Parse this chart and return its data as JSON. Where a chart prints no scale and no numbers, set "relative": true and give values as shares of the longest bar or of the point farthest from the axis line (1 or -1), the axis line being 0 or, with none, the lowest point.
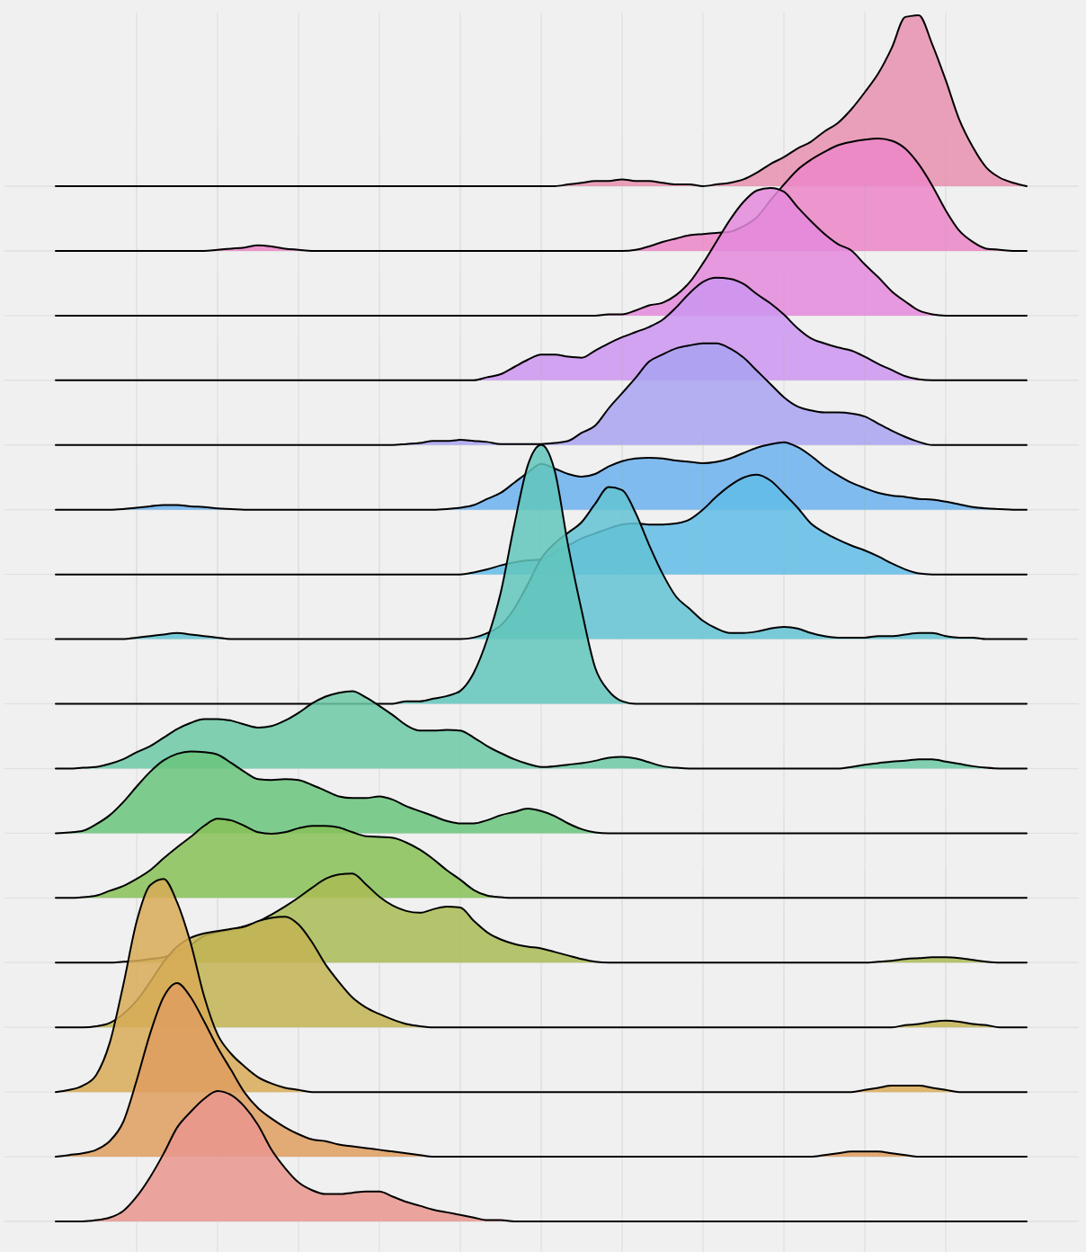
{
  "chart_data": [
    {
      "type": "area",
      "relative": true,
      "grid": true,
      "color": "#e891b0",
      "categories": [
        null,
        null,
        null,
        null,
        null,
        null,
        null,
        null,
        null,
        null,
        null,
        null,
        null,
        null,
        null,
        null,
        null,
        null,
        null,
        null,
        null,
        null,
        null,
        null,
        null,
        null,
        null,
        null,
        null,
        null,
        null,
        null,
        null,
        null,
        null,
        null,
        null,
        null,
        null,
        null,
        null,
        null,
        null,
        null,
        null,
        null,
        null,
        null,
        null,
        null,
        null,
        null,
        null,
        null,
        null,
        null,
        null,
        null,
        null,
        null,
        null,
        null,
        null,
        null,
        null,
        null,
        null,
        null,
        null,
        null,
        null,
        null,
        null
      ],
      "values": [
        0,
        0,
        0,
        0,
        0,
        0,
        0,
        0,
        0,
        0,
        0,
        0,
        0,
        0,
        0,
        0,
        0,
        0,
        0,
        0,
        0,
        0,
        0,
        0,
        0,
        0,
        0,
        0,
        0,
        0,
        0,
        0,
        0,
        0,
        0,
        0,
        0,
        0,
        0.01,
        0.02,
        0.03,
        0.03,
        0.04,
        0.03,
        0.03,
        0.02,
        0.01,
        0.01,
        0,
        0.01,
        0.02,
        0.04,
        0.08,
        0.13,
        0.17,
        0.22,
        0.26,
        0.32,
        0.37,
        0.45,
        0.55,
        0.66,
        0.81,
        0.99,
        1,
        0.83,
        0.62,
        0.39,
        0.23,
        0.11,
        0.05,
        0.02,
        0
      ]
    },
    {
      "type": "area",
      "relative": true,
      "grid": true,
      "color": "#eb86c7",
      "categories": [
        null,
        null,
        null,
        null,
        null,
        null,
        null,
        null,
        null,
        null,
        null,
        null,
        null,
        null,
        null,
        null,
        null,
        null,
        null,
        null,
        null,
        null,
        null,
        null,
        null,
        null,
        null,
        null,
        null,
        null,
        null,
        null,
        null,
        null,
        null,
        null,
        null,
        null,
        null,
        null,
        null,
        null,
        null,
        null,
        null,
        null,
        null,
        null,
        null,
        null,
        null,
        null,
        null,
        null,
        null,
        null,
        null,
        null,
        null,
        null,
        null,
        null,
        null,
        null,
        null,
        null,
        null,
        null,
        null,
        null,
        null,
        null,
        null
      ],
      "values": [
        0,
        0,
        0,
        0,
        0,
        0,
        0,
        0,
        0,
        0,
        0,
        0,
        0.01,
        0.02,
        0.03,
        0.05,
        0.04,
        0.02,
        0.01,
        0,
        0,
        0,
        0,
        0,
        0,
        0,
        0,
        0,
        0,
        0,
        0,
        0,
        0,
        0,
        0,
        0,
        0,
        0,
        0,
        0,
        0,
        0,
        0,
        0.01,
        0.04,
        0.08,
        0.11,
        0.14,
        0.15,
        0.16,
        0.17,
        0.22,
        0.3,
        0.45,
        0.59,
        0.72,
        0.81,
        0.88,
        0.94,
        0.97,
        0.99,
        1,
        0.98,
        0.91,
        0.77,
        0.58,
        0.36,
        0.18,
        0.08,
        0.02,
        0.01,
        0,
        0
      ]
    },
    {
      "type": "area",
      "relative": true,
      "grid": true,
      "color": "#e48adc",
      "categories": [
        null,
        null,
        null,
        null,
        null,
        null,
        null,
        null,
        null,
        null,
        null,
        null,
        null,
        null,
        null,
        null,
        null,
        null,
        null,
        null,
        null,
        null,
        null,
        null,
        null,
        null,
        null,
        null,
        null,
        null,
        null,
        null,
        null,
        null,
        null,
        null,
        null,
        null,
        null,
        null,
        null,
        null,
        null,
        null,
        null,
        null,
        null,
        null,
        null,
        null,
        null,
        null,
        null,
        null,
        null,
        null,
        null,
        null,
        null,
        null,
        null,
        null,
        null,
        null,
        null,
        null,
        null,
        null,
        null,
        null,
        null,
        null,
        null
      ],
      "values": [
        0,
        0,
        0,
        0,
        0,
        0,
        0,
        0,
        0,
        0,
        0,
        0,
        0,
        0,
        0,
        0,
        0,
        0,
        0,
        0,
        0,
        0,
        0,
        0,
        0,
        0,
        0,
        0,
        0,
        0,
        0,
        0,
        0,
        0,
        0,
        0,
        0,
        0,
        0,
        0,
        0,
        0.01,
        0.01,
        0.04,
        0.08,
        0.1,
        0.16,
        0.26,
        0.41,
        0.58,
        0.75,
        0.89,
        0.98,
        1,
        0.97,
        0.85,
        0.74,
        0.64,
        0.56,
        0.51,
        0.4,
        0.3,
        0.19,
        0.11,
        0.04,
        0.01,
        0,
        0,
        0,
        0,
        0,
        0,
        0
      ]
    },
    {
      "type": "area",
      "relative": true,
      "grid": true,
      "color": "#cb95f0",
      "categories": [
        null,
        null,
        null,
        null,
        null,
        null,
        null,
        null,
        null,
        null,
        null,
        null,
        null,
        null,
        null,
        null,
        null,
        null,
        null,
        null,
        null,
        null,
        null,
        null,
        null,
        null,
        null,
        null,
        null,
        null,
        null,
        null,
        null,
        null,
        null,
        null,
        null,
        null,
        null,
        null,
        null,
        null,
        null,
        null,
        null,
        null,
        null,
        null,
        null,
        null,
        null,
        null,
        null,
        null,
        null,
        null,
        null,
        null,
        null,
        null,
        null,
        null,
        null,
        null,
        null,
        null,
        null,
        null,
        null,
        null,
        null,
        null,
        null
      ],
      "values": [
        0,
        0,
        0,
        0,
        0,
        0,
        0,
        0,
        0,
        0,
        0,
        0,
        0,
        0,
        0,
        0,
        0,
        0,
        0,
        0,
        0,
        0,
        0,
        0,
        0,
        0,
        0,
        0,
        0,
        0,
        0,
        0,
        0.03,
        0.06,
        0.13,
        0.2,
        0.25,
        0.25,
        0.23,
        0.22,
        0.29,
        0.36,
        0.42,
        0.47,
        0.52,
        0.59,
        0.71,
        0.85,
        0.96,
        1,
        0.99,
        0.94,
        0.84,
        0.75,
        0.64,
        0.51,
        0.41,
        0.36,
        0.32,
        0.29,
        0.23,
        0.16,
        0.1,
        0.04,
        0.01,
        0,
        0,
        0,
        0,
        0,
        0,
        0,
        0
      ]
    },
    {
      "type": "area",
      "relative": true,
      "grid": true,
      "color": "#a9a3f1",
      "categories": [
        null,
        null,
        null,
        null,
        null,
        null,
        null,
        null,
        null,
        null,
        null,
        null,
        null,
        null,
        null,
        null,
        null,
        null,
        null,
        null,
        null,
        null,
        null,
        null,
        null,
        null,
        null,
        null,
        null,
        null,
        null,
        null,
        null,
        null,
        null,
        null,
        null,
        null,
        null,
        null,
        null,
        null,
        null,
        null,
        null,
        null,
        null,
        null,
        null,
        null,
        null,
        null,
        null,
        null,
        null,
        null,
        null,
        null,
        null,
        null,
        null,
        null,
        null,
        null,
        null,
        null,
        null,
        null,
        null,
        null,
        null,
        null,
        null
      ],
      "values": [
        0,
        0,
        0,
        0,
        0,
        0,
        0,
        0,
        0,
        0,
        0,
        0,
        0,
        0,
        0,
        0,
        0,
        0,
        0,
        0,
        0,
        0,
        0,
        0,
        0,
        0,
        0.01,
        0.02,
        0.04,
        0.04,
        0.05,
        0.04,
        0.03,
        0.01,
        0.01,
        0.01,
        0.01,
        0.02,
        0.04,
        0.12,
        0.19,
        0.36,
        0.51,
        0.66,
        0.82,
        0.89,
        0.95,
        0.98,
        1,
        1,
        0.95,
        0.86,
        0.73,
        0.6,
        0.47,
        0.38,
        0.34,
        0.32,
        0.32,
        0.31,
        0.28,
        0.21,
        0.14,
        0.08,
        0.03,
        0,
        0,
        0,
        0,
        0,
        0,
        0,
        0
      ]
    },
    {
      "type": "area",
      "relative": true,
      "grid": true,
      "color": "#6cb1ef",
      "categories": [
        null,
        null,
        null,
        null,
        null,
        null,
        null,
        null,
        null,
        null,
        null,
        null,
        null,
        null,
        null,
        null,
        null,
        null,
        null,
        null,
        null,
        null,
        null,
        null,
        null,
        null,
        null,
        null,
        null,
        null,
        null,
        null,
        null,
        null,
        null,
        null,
        null,
        null,
        null,
        null,
        null,
        null,
        null,
        null,
        null,
        null,
        null,
        null,
        null,
        null,
        null,
        null,
        null,
        null,
        null,
        null,
        null,
        null,
        null,
        null,
        null,
        null,
        null,
        null,
        null,
        null,
        null,
        null,
        null,
        null,
        null,
        null,
        null
      ],
      "values": [
        0,
        0,
        0,
        0,
        0,
        0.01,
        0.03,
        0.05,
        0.07,
        0.07,
        0.05,
        0.04,
        0.02,
        0.01,
        0,
        0,
        0,
        0,
        0,
        0,
        0,
        0,
        0,
        0,
        0,
        0,
        0,
        0,
        0,
        0.01,
        0.03,
        0.07,
        0.16,
        0.25,
        0.4,
        0.55,
        0.68,
        0.61,
        0.53,
        0.49,
        0.53,
        0.64,
        0.72,
        0.76,
        0.77,
        0.76,
        0.73,
        0.71,
        0.69,
        0.71,
        0.76,
        0.84,
        0.92,
        0.97,
        1,
        0.93,
        0.8,
        0.64,
        0.51,
        0.4,
        0.32,
        0.25,
        0.21,
        0.19,
        0.16,
        0.15,
        0.12,
        0.08,
        0.04,
        0.02,
        0.01,
        0,
        0
      ]
    },
    {
      "type": "area",
      "relative": true,
      "grid": true,
      "color": "#62bce8",
      "categories": [
        null,
        null,
        null,
        null,
        null,
        null,
        null,
        null,
        null,
        null,
        null,
        null,
        null,
        null,
        null,
        null,
        null,
        null,
        null,
        null,
        null,
        null,
        null,
        null,
        null,
        null,
        null,
        null,
        null,
        null,
        null,
        null,
        null,
        null,
        null,
        null,
        null,
        null,
        null,
        null,
        null,
        null,
        null,
        null,
        null,
        null,
        null,
        null,
        null,
        null,
        null,
        null,
        null,
        null,
        null,
        null,
        null,
        null,
        null,
        null,
        null,
        null,
        null,
        null,
        null,
        null,
        null,
        null,
        null,
        null,
        null,
        null,
        null
      ],
      "values": [
        0,
        0,
        0,
        0,
        0,
        0,
        0,
        0,
        0,
        0,
        0,
        0,
        0,
        0,
        0,
        0,
        0,
        0,
        0,
        0,
        0,
        0,
        0,
        0,
        0,
        0,
        0,
        0,
        0,
        0,
        0,
        0.02,
        0.05,
        0.09,
        0.12,
        0.14,
        0.15,
        0.22,
        0.29,
        0.36,
        0.41,
        0.46,
        0.5,
        0.51,
        0.5,
        0.5,
        0.51,
        0.55,
        0.65,
        0.78,
        0.89,
        0.97,
        1,
        0.94,
        0.81,
        0.67,
        0.51,
        0.42,
        0.35,
        0.29,
        0.24,
        0.18,
        0.11,
        0.05,
        0.01,
        0,
        0,
        0,
        0,
        0,
        0,
        0,
        0
      ]
    },
    {
      "type": "area",
      "relative": true,
      "grid": true,
      "color": "#63c3d3",
      "categories": [
        null,
        null,
        null,
        null,
        null,
        null,
        null,
        null,
        null,
        null,
        null,
        null,
        null,
        null,
        null,
        null,
        null,
        null,
        null,
        null,
        null,
        null,
        null,
        null,
        null,
        null,
        null,
        null,
        null,
        null,
        null,
        null,
        null,
        null,
        null,
        null,
        null,
        null,
        null,
        null,
        null,
        null,
        null,
        null,
        null,
        null,
        null,
        null,
        null,
        null,
        null,
        null,
        null,
        null,
        null,
        null,
        null,
        null,
        null,
        null,
        null,
        null,
        null,
        null,
        null,
        null,
        null,
        null,
        null,
        null,
        null,
        null,
        null
      ],
      "values": [
        0,
        0,
        0,
        0,
        0,
        0,
        0.01,
        0.02,
        0.03,
        0.04,
        0.03,
        0.02,
        0.01,
        0,
        0,
        0,
        0,
        0,
        0,
        0,
        0,
        0,
        0,
        0,
        0,
        0,
        0,
        0,
        0,
        0,
        0,
        0.01,
        0.04,
        0.09,
        0.2,
        0.36,
        0.53,
        0.63,
        0.7,
        0.77,
        0.89,
        1,
        0.98,
        0.83,
        0.62,
        0.43,
        0.28,
        0.2,
        0.12,
        0.07,
        0.04,
        0.04,
        0.05,
        0.07,
        0.08,
        0.07,
        0.04,
        0.02,
        0.01,
        0.01,
        0.01,
        0.02,
        0.02,
        0.03,
        0.04,
        0.04,
        0.02,
        0.01,
        0.01,
        0,
        0,
        0,
        0
      ]
    },
    {
      "type": "area",
      "relative": true,
      "grid": true,
      "color": "#62c6bc",
      "categories": [
        null,
        null,
        null,
        null,
        null,
        null,
        null,
        null,
        null,
        null,
        null,
        null,
        null,
        null,
        null,
        null,
        null,
        null,
        null,
        null,
        null,
        null,
        null,
        null,
        null,
        null,
        null,
        null,
        null,
        null,
        null,
        null,
        null,
        null,
        null,
        null,
        null,
        null,
        null,
        null,
        null,
        null,
        null,
        null,
        null,
        null,
        null,
        null,
        null,
        null,
        null,
        null,
        null,
        null,
        null,
        null,
        null,
        null,
        null,
        null,
        null,
        null,
        null,
        null,
        null,
        null,
        null,
        null,
        null,
        null,
        null,
        null,
        null
      ],
      "values": [
        0,
        0,
        0,
        0,
        0,
        0,
        0,
        0,
        0,
        0,
        0,
        0,
        0,
        0,
        0,
        0,
        0,
        0,
        0,
        0,
        0,
        0,
        0,
        0,
        0,
        0,
        0.01,
        0.01,
        0.02,
        0.03,
        0.05,
        0.12,
        0.25,
        0.43,
        0.69,
        0.92,
        1,
        0.9,
        0.61,
        0.36,
        0.14,
        0.05,
        0.01,
        0,
        0,
        0,
        0,
        0,
        0,
        0,
        0,
        0,
        0,
        0,
        0,
        0,
        0,
        0,
        0,
        0,
        0,
        0,
        0,
        0,
        0,
        0,
        0,
        0,
        0,
        0,
        0,
        0,
        0
      ]
    },
    {
      "type": "area",
      "relative": true,
      "grid": true,
      "color": "#6bc9a4",
      "categories": [
        null,
        null,
        null,
        null,
        null,
        null,
        null,
        null,
        null,
        null,
        null,
        null,
        null,
        null,
        null,
        null,
        null,
        null,
        null,
        null,
        null,
        null,
        null,
        null,
        null,
        null,
        null,
        null,
        null,
        null,
        null,
        null,
        null,
        null,
        null,
        null,
        null,
        null,
        null,
        null,
        null,
        null,
        null,
        null,
        null,
        null,
        null,
        null,
        null,
        null,
        null,
        null,
        null,
        null,
        null,
        null,
        null,
        null,
        null,
        null,
        null,
        null,
        null,
        null,
        null,
        null,
        null,
        null,
        null,
        null,
        null,
        null,
        null
      ],
      "values": [
        0,
        0,
        0.01,
        0.02,
        0.06,
        0.12,
        0.21,
        0.29,
        0.4,
        0.51,
        0.59,
        0.64,
        0.64,
        0.62,
        0.57,
        0.53,
        0.55,
        0.62,
        0.72,
        0.84,
        0.93,
        0.98,
        1,
        0.92,
        0.81,
        0.69,
        0.56,
        0.49,
        0.49,
        0.5,
        0.49,
        0.4,
        0.29,
        0.2,
        0.12,
        0.06,
        0.02,
        0.03,
        0.05,
        0.07,
        0.1,
        0.14,
        0.15,
        0.13,
        0.08,
        0.03,
        0.01,
        0,
        0,
        0,
        0,
        0,
        0,
        0,
        0,
        0,
        0,
        0,
        0,
        0.02,
        0.05,
        0.07,
        0.09,
        0.1,
        0.12,
        0.12,
        0.09,
        0.06,
        0.03,
        0.01,
        0,
        0,
        0
      ]
    },
    {
      "type": "area",
      "relative": true,
      "grid": true,
      "color": "#6ac47d",
      "categories": [
        null,
        null,
        null,
        null,
        null,
        null,
        null,
        null,
        null,
        null,
        null,
        null,
        null,
        null,
        null,
        null,
        null,
        null,
        null,
        null,
        null,
        null,
        null,
        null,
        null,
        null,
        null,
        null,
        null,
        null,
        null,
        null,
        null,
        null,
        null,
        null,
        null,
        null,
        null,
        null,
        null,
        null,
        null,
        null,
        null,
        null,
        null,
        null,
        null,
        null,
        null,
        null,
        null,
        null,
        null,
        null,
        null,
        null,
        null,
        null,
        null,
        null,
        null,
        null,
        null,
        null,
        null,
        null,
        null,
        null,
        null,
        null,
        null
      ],
      "values": [
        0,
        0.01,
        0.03,
        0.11,
        0.22,
        0.38,
        0.57,
        0.75,
        0.89,
        0.97,
        1,
        0.99,
        0.96,
        0.86,
        0.75,
        0.66,
        0.65,
        0.66,
        0.65,
        0.59,
        0.52,
        0.45,
        0.43,
        0.43,
        0.45,
        0.41,
        0.33,
        0.27,
        0.21,
        0.15,
        0.12,
        0.12,
        0.16,
        0.22,
        0.26,
        0.3,
        0.27,
        0.21,
        0.12,
        0.05,
        0.01,
        0,
        0,
        0,
        0,
        0,
        0,
        0,
        0,
        0,
        0,
        0,
        0,
        0,
        0,
        0,
        0,
        0,
        0,
        0,
        0,
        0,
        0,
        0,
        0,
        0,
        0,
        0,
        0,
        0,
        0,
        0,
        0
      ]
    },
    {
      "type": "area",
      "relative": true,
      "grid": true,
      "color": "#87c157",
      "categories": [
        null,
        null,
        null,
        null,
        null,
        null,
        null,
        null,
        null,
        null,
        null,
        null,
        null,
        null,
        null,
        null,
        null,
        null,
        null,
        null,
        null,
        null,
        null,
        null,
        null,
        null,
        null,
        null,
        null,
        null,
        null,
        null,
        null,
        null,
        null,
        null,
        null,
        null,
        null,
        null,
        null,
        null,
        null,
        null,
        null,
        null,
        null,
        null,
        null,
        null,
        null,
        null,
        null,
        null,
        null,
        null,
        null,
        null,
        null,
        null,
        null,
        null,
        null,
        null,
        null,
        null,
        null,
        null,
        null,
        null,
        null,
        null,
        null
      ],
      "values": [
        0,
        0,
        0.01,
        0.03,
        0.09,
        0.15,
        0.24,
        0.35,
        0.5,
        0.64,
        0.77,
        0.91,
        1,
        0.98,
        0.91,
        0.83,
        0.81,
        0.83,
        0.88,
        0.91,
        0.91,
        0.89,
        0.83,
        0.78,
        0.77,
        0.76,
        0.7,
        0.61,
        0.49,
        0.35,
        0.23,
        0.1,
        0.03,
        0.01,
        0,
        0,
        0,
        0,
        0,
        0,
        0,
        0,
        0,
        0,
        0,
        0,
        0,
        0,
        0,
        0,
        0,
        0,
        0,
        0,
        0,
        0,
        0,
        0,
        0,
        0,
        0,
        0,
        0,
        0,
        0,
        0,
        0,
        0,
        0,
        0,
        0,
        0,
        0
      ]
    },
    {
      "type": "area",
      "relative": true,
      "grid": true,
      "color": "#a9bc55",
      "categories": [
        null,
        null,
        null,
        null,
        null,
        null,
        null,
        null,
        null,
        null,
        null,
        null,
        null,
        null,
        null,
        null,
        null,
        null,
        null,
        null,
        null,
        null,
        null,
        null,
        null,
        null,
        null,
        null,
        null,
        null,
        null,
        null,
        null,
        null,
        null,
        null,
        null,
        null,
        null,
        null,
        null,
        null,
        null,
        null,
        null,
        null,
        null,
        null,
        null,
        null,
        null,
        null,
        null,
        null,
        null,
        null,
        null,
        null,
        null,
        null,
        null,
        null,
        null,
        null,
        null,
        null,
        null,
        null,
        null,
        null,
        null,
        null,
        null
      ],
      "values": [
        0,
        0,
        0,
        0,
        0,
        0.01,
        0.02,
        0.04,
        0.06,
        0.12,
        0.2,
        0.3,
        0.34,
        0.37,
        0.41,
        0.46,
        0.54,
        0.63,
        0.73,
        0.84,
        0.94,
        0.99,
        1,
        0.88,
        0.74,
        0.64,
        0.58,
        0.56,
        0.6,
        0.63,
        0.62,
        0.47,
        0.34,
        0.26,
        0.21,
        0.18,
        0.16,
        0.12,
        0.08,
        0.04,
        0.01,
        0,
        0,
        0,
        0,
        0,
        0,
        0,
        0,
        0,
        0,
        0,
        0,
        0,
        0,
        0,
        0,
        0,
        0,
        0,
        0,
        0.01,
        0.02,
        0.04,
        0.05,
        0.06,
        0.06,
        0.05,
        0.03,
        0.01,
        0,
        0,
        0
      ]
    },
    {
      "type": "area",
      "relative": true,
      "grid": true,
      "color": "#c2b453",
      "categories": [
        null,
        null,
        null,
        null,
        null,
        null,
        null,
        null,
        null,
        null,
        null,
        null,
        null,
        null,
        null,
        null,
        null,
        null,
        null,
        null,
        null,
        null,
        null,
        null,
        null,
        null,
        null,
        null,
        null,
        null,
        null,
        null,
        null,
        null,
        null,
        null,
        null,
        null,
        null,
        null,
        null,
        null,
        null,
        null,
        null,
        null,
        null,
        null,
        null,
        null,
        null,
        null,
        null,
        null,
        null,
        null,
        null,
        null,
        null,
        null,
        null,
        null,
        null,
        null,
        null,
        null,
        null,
        null,
        null,
        null,
        null,
        null,
        null
      ],
      "values": [
        0,
        0,
        0,
        0.01,
        0.04,
        0.12,
        0.24,
        0.41,
        0.59,
        0.73,
        0.81,
        0.85,
        0.87,
        0.89,
        0.91,
        0.96,
        0.99,
        1,
        0.93,
        0.77,
        0.57,
        0.41,
        0.27,
        0.18,
        0.12,
        0.07,
        0.03,
        0.01,
        0,
        0,
        0,
        0,
        0,
        0,
        0,
        0,
        0,
        0,
        0,
        0,
        0,
        0,
        0,
        0,
        0,
        0,
        0,
        0,
        0,
        0,
        0,
        0,
        0,
        0,
        0,
        0,
        0,
        0,
        0,
        0,
        0,
        0,
        0,
        0.02,
        0.03,
        0.05,
        0.06,
        0.05,
        0.03,
        0.02,
        0,
        0,
        0
      ]
    },
    {
      "type": "area",
      "relative": true,
      "grid": true,
      "color": "#d8ab57",
      "categories": [
        null,
        null,
        null,
        null,
        null,
        null,
        null,
        null,
        null,
        null,
        null,
        null,
        null,
        null,
        null,
        null,
        null,
        null,
        null,
        null,
        null,
        null,
        null,
        null,
        null,
        null,
        null,
        null,
        null,
        null,
        null,
        null,
        null,
        null,
        null,
        null,
        null,
        null,
        null,
        null,
        null,
        null,
        null,
        null,
        null,
        null,
        null,
        null,
        null,
        null,
        null,
        null,
        null,
        null,
        null,
        null,
        null,
        null,
        null,
        null,
        null,
        null,
        null,
        null,
        null,
        null,
        null,
        null,
        null,
        null,
        null,
        null,
        null
      ],
      "values": [
        0,
        0.01,
        0.03,
        0.08,
        0.23,
        0.5,
        0.8,
        0.97,
        1,
        0.89,
        0.7,
        0.45,
        0.27,
        0.18,
        0.12,
        0.07,
        0.04,
        0.02,
        0.01,
        0,
        0,
        0,
        0,
        0,
        0,
        0,
        0,
        0,
        0,
        0,
        0,
        0,
        0,
        0,
        0,
        0,
        0,
        0,
        0,
        0,
        0,
        0,
        0,
        0,
        0,
        0,
        0,
        0,
        0,
        0,
        0,
        0,
        0,
        0,
        0,
        0,
        0,
        0,
        0,
        0,
        0.01,
        0.02,
        0.03,
        0.03,
        0.03,
        0.02,
        0.01,
        0,
        0,
        0,
        0,
        0,
        0
      ]
    },
    {
      "type": "area",
      "relative": true,
      "grid": true,
      "color": "#df9e5f",
      "categories": [
        null,
        null,
        null,
        null,
        null,
        null,
        null,
        null,
        null,
        null,
        null,
        null,
        null,
        null,
        null,
        null,
        null,
        null,
        null,
        null,
        null,
        null,
        null,
        null,
        null,
        null,
        null,
        null,
        null,
        null,
        null,
        null,
        null,
        null,
        null,
        null,
        null,
        null,
        null,
        null,
        null,
        null,
        null,
        null,
        null,
        null,
        null,
        null,
        null,
        null,
        null,
        null,
        null,
        null,
        null,
        null,
        null,
        null,
        null,
        null,
        null,
        null,
        null,
        null,
        null,
        null,
        null,
        null,
        null,
        null,
        null,
        null,
        null
      ],
      "values": [
        0,
        0.01,
        0.02,
        0.04,
        0.09,
        0.2,
        0.44,
        0.71,
        0.92,
        1,
        0.92,
        0.78,
        0.63,
        0.5,
        0.37,
        0.28,
        0.22,
        0.17,
        0.13,
        0.1,
        0.09,
        0.07,
        0.06,
        0.05,
        0.04,
        0.03,
        0.02,
        0.01,
        0,
        0,
        0,
        0,
        0,
        0,
        0,
        0,
        0,
        0,
        0,
        0,
        0,
        0,
        0,
        0,
        0,
        0,
        0,
        0,
        0,
        0,
        0,
        0,
        0,
        0,
        0,
        0,
        0,
        0.01,
        0.02,
        0.03,
        0.03,
        0.03,
        0.02,
        0.01,
        0,
        0,
        0,
        0,
        0,
        0,
        0,
        0,
        0
      ]
    },
    {
      "type": "area",
      "relative": true,
      "grid": true,
      "color": "#e9968e",
      "categories": [
        null,
        null,
        null,
        null,
        null,
        null,
        null,
        null,
        null,
        null,
        null,
        null,
        null,
        null,
        null,
        null,
        null,
        null,
        null,
        null,
        null,
        null,
        null,
        null,
        null,
        null,
        null,
        null,
        null,
        null,
        null,
        null,
        null,
        null,
        null,
        null,
        null,
        null,
        null,
        null,
        null,
        null,
        null,
        null,
        null,
        null,
        null,
        null,
        null,
        null,
        null,
        null,
        null,
        null,
        null,
        null,
        null,
        null,
        null,
        null,
        null,
        null,
        null,
        null,
        null,
        null,
        null,
        null,
        null,
        null,
        null,
        null,
        null
      ],
      "values": [
        0,
        0,
        0,
        0.01,
        0.03,
        0.08,
        0.19,
        0.34,
        0.52,
        0.72,
        0.84,
        0.94,
        1,
        0.97,
        0.88,
        0.74,
        0.55,
        0.41,
        0.3,
        0.24,
        0.21,
        0.21,
        0.22,
        0.23,
        0.23,
        0.19,
        0.15,
        0.12,
        0.09,
        0.07,
        0.05,
        0.03,
        0.01,
        0.01,
        0,
        0,
        0,
        0,
        0,
        0,
        0,
        0,
        0,
        0,
        0,
        0,
        0,
        0,
        0,
        0,
        0,
        0,
        0,
        0,
        0,
        0,
        0,
        0,
        0,
        0,
        0,
        0,
        0,
        0,
        0,
        0,
        0,
        0,
        0,
        0,
        0,
        0,
        0
      ]
    }
  ]
}
